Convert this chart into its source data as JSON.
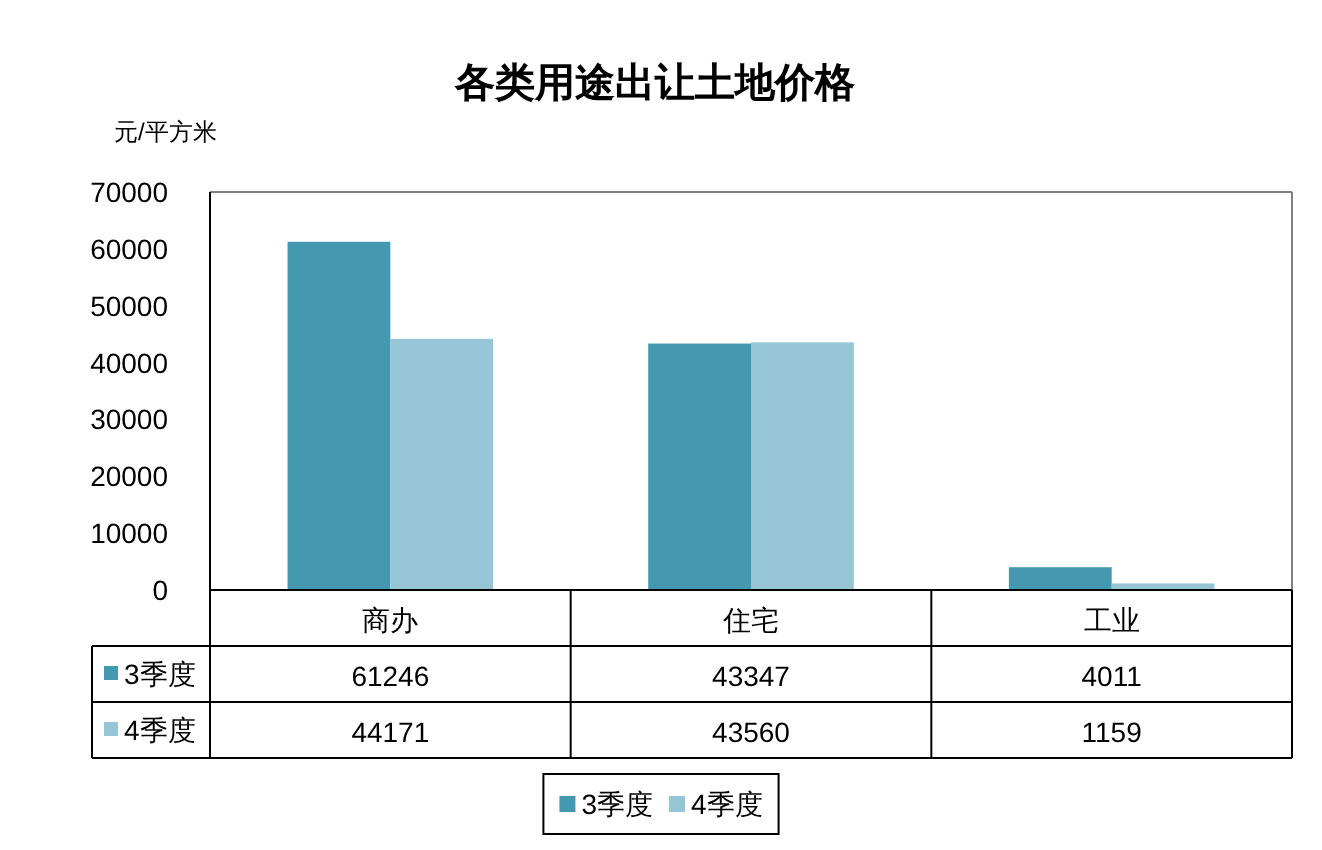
{
  "chart_data": {
    "type": "bar",
    "title": "各类用途出让土地价格",
    "ylabel": "元/平方米",
    "categories": [
      "商办",
      "住宅",
      "工业"
    ],
    "series": [
      {
        "name": "3季度",
        "color": "#4499b0",
        "values": [
          61246,
          43347,
          4011
        ]
      },
      {
        "name": "4季度",
        "color": "#96c5d6",
        "values": [
          44171,
          43560,
          1159
        ]
      }
    ],
    "ylim": [
      0,
      70000
    ],
    "yticks": [
      0,
      10000,
      20000,
      30000,
      40000,
      50000,
      60000,
      70000
    ],
    "data_labels": true,
    "legend": "bottom"
  }
}
